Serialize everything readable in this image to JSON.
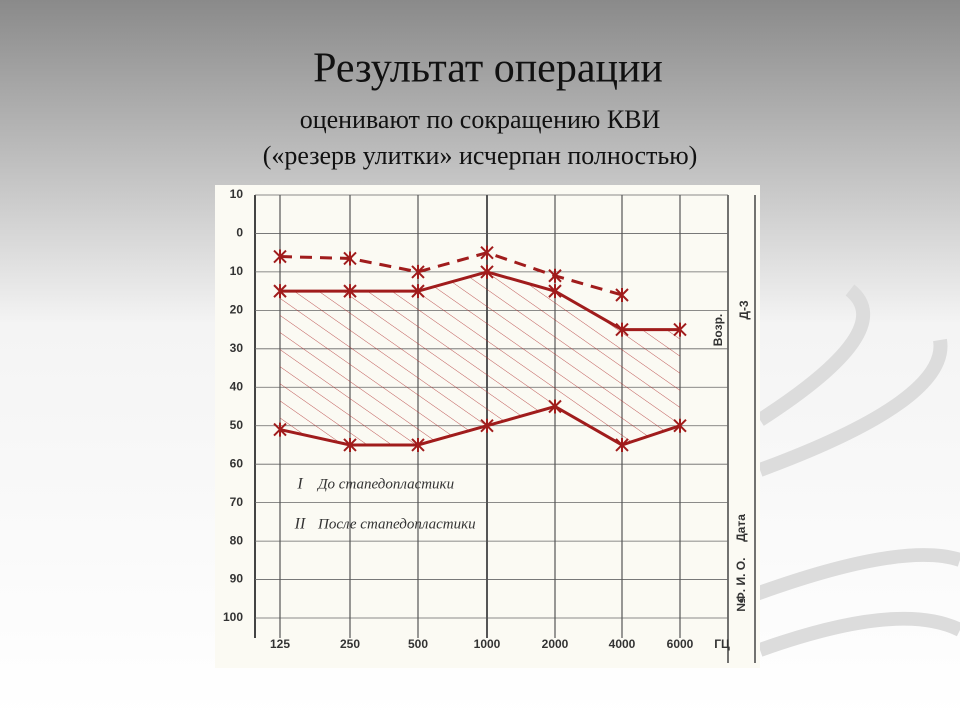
{
  "chart_data": {
    "type": "line",
    "title": "Результат операции",
    "subtitle": [
      "оценивают по сокращению КВИ",
      "(«резерв улитки» исчерпан полностью)"
    ],
    "categories": [
      "125",
      "250",
      "500",
      "1000",
      "2000",
      "4000",
      "6000"
    ],
    "x_label": "ГЦ",
    "series": [
      {
        "color": "#a01c1c",
        "dashed": true,
        "values": [
          6,
          6.5,
          10,
          5,
          11,
          16,
          null
        ]
      },
      {
        "label": "II",
        "name": "После стапедопластики",
        "color": "#a01c1c",
        "dashed": false,
        "values": [
          15,
          15,
          15,
          10,
          15,
          25,
          25
        ]
      },
      {
        "label": "I",
        "name": "До стапедопластики",
        "color": "#a01c1c",
        "dashed": false,
        "values": [
          51,
          55,
          55,
          50,
          45,
          55,
          50
        ]
      }
    ],
    "ylim": [
      -10,
      100
    ],
    "y_inverted": true,
    "yticks": [
      {
        "value": -10,
        "label": "10"
      },
      0,
      10,
      20,
      30,
      40,
      50,
      60,
      70,
      80,
      90,
      100
    ],
    "grid": true,
    "side_labels": [
      "Возр.",
      "Д-3",
      "Ф. И. О.",
      "№",
      "Дата"
    ]
  }
}
